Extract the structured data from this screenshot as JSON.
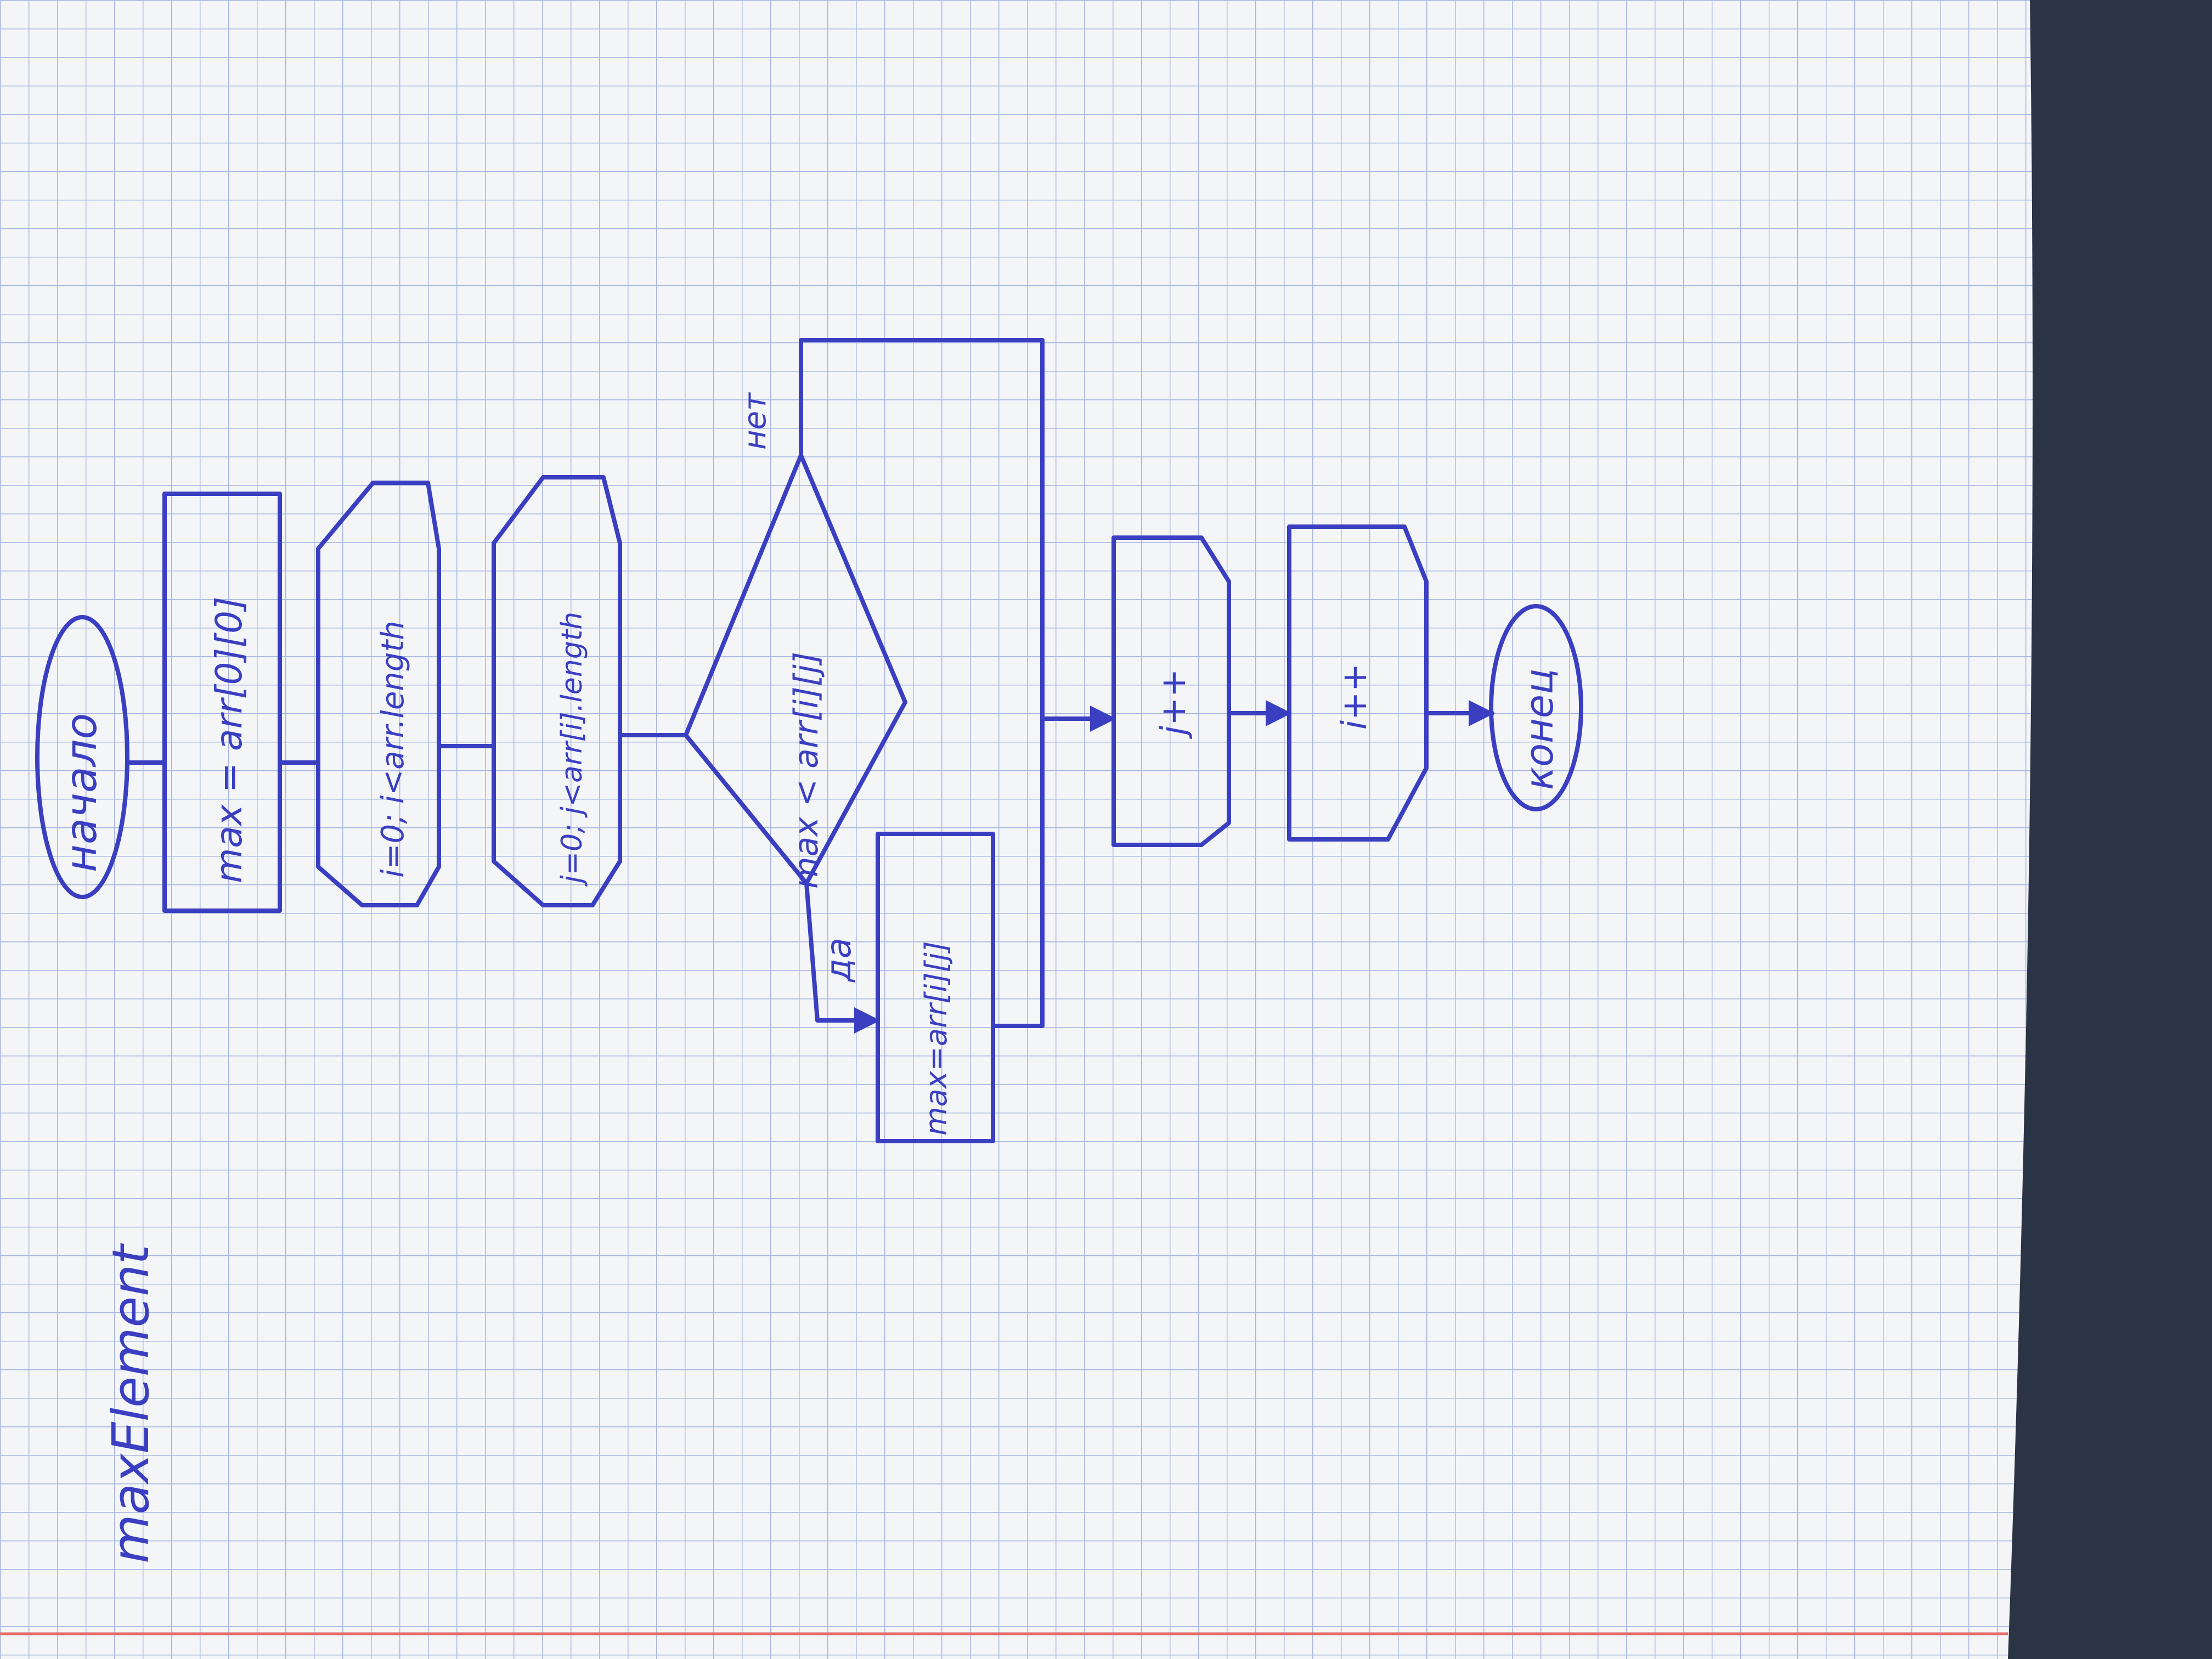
{
  "sheet": {
    "title": "maxElement",
    "paper_color": "#f4f5f7",
    "grid_color": "#a9b6e0",
    "ink_color": "#3a3fc2",
    "margin_color": "#e46a6a",
    "background_color": "#2b3444"
  },
  "flowchart": {
    "start": "начало",
    "init": "max = arr[0][0]",
    "outer_loop": "i=0; i<arr.length",
    "inner_loop": "j=0; j<arr[i].length",
    "condition": "max < arr[i][j]",
    "yes_label": "да",
    "no_label": "нет",
    "assign": "max=arr[i][j]",
    "inner_increment": "j++",
    "outer_increment": "i++",
    "end": "конец"
  }
}
